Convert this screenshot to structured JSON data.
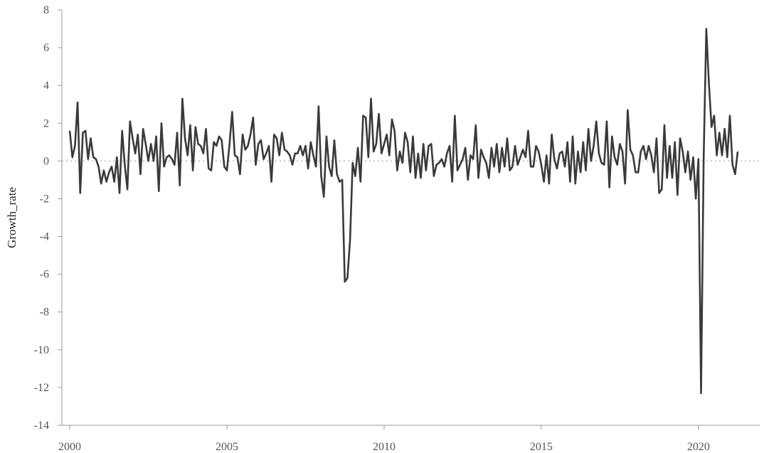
{
  "chart_data": {
    "type": "line",
    "title": "",
    "xlabel": "",
    "ylabel": "Growth_rate",
    "xlim": [
      1999.75,
      2021.95
    ],
    "ylim": [
      -14,
      8
    ],
    "x_ticks": [
      2000,
      2005,
      2010,
      2015,
      2020
    ],
    "x_tick_labels": [
      "2000",
      "2005",
      "2010",
      "2015",
      "2020"
    ],
    "y_ticks": [
      -14,
      -12,
      -10,
      -8,
      -6,
      -4,
      -2,
      0,
      2,
      4,
      6,
      8
    ],
    "y_tick_labels": [
      "-14",
      "-12",
      "-10",
      "-8",
      "-6",
      "-4",
      "-2",
      "0",
      "2",
      "4",
      "6",
      "8"
    ],
    "grid": false,
    "reference_line": 0,
    "series_color": "#3a3a3a",
    "series": [
      {
        "start_year": 2000,
        "start_month": 1,
        "frequency": "monthly",
        "values": [
          1.6,
          0.2,
          0.8,
          3.1,
          -1.7,
          1.5,
          1.6,
          0.1,
          1.2,
          0.2,
          0.1,
          -0.3,
          -1.2,
          -0.5,
          -1.1,
          -0.6,
          -0.3,
          -1.1,
          0.2,
          -1.7,
          1.6,
          -0.2,
          -1.5,
          2.1,
          1.2,
          0.4,
          1.4,
          -0.7,
          1.7,
          0.9,
          0.0,
          0.9,
          0.0,
          1.3,
          -1.6,
          2.0,
          -0.3,
          0.2,
          0.3,
          0.1,
          -0.2,
          1.5,
          -1.3,
          3.3,
          1.2,
          0.3,
          1.9,
          -0.5,
          1.8,
          0.9,
          0.8,
          0.4,
          1.7,
          -0.4,
          -0.5,
          1.0,
          0.8,
          1.3,
          1.1,
          -0.3,
          -0.5,
          0.9,
          2.6,
          0.3,
          0.2,
          -0.7,
          1.4,
          0.6,
          0.8,
          1.4,
          2.3,
          -0.2,
          0.9,
          1.1,
          0.1,
          0.4,
          0.8,
          -1.1,
          1.4,
          1.2,
          0.3,
          1.5,
          0.6,
          0.5,
          0.3,
          -0.2,
          0.4,
          0.4,
          0.8,
          0.3,
          0.8,
          -0.4,
          1.0,
          0.3,
          -0.3,
          2.9,
          -0.8,
          -1.9,
          1.3,
          -0.3,
          -0.8,
          1.1,
          -0.7,
          -1.1,
          -1.0,
          -6.4,
          -6.2,
          -4.2,
          -0.1,
          -0.8,
          0.7,
          -1.1,
          2.4,
          2.3,
          0.2,
          3.3,
          0.5,
          0.9,
          2.5,
          0.4,
          0.9,
          1.4,
          0.3,
          2.2,
          1.6,
          -0.5,
          0.5,
          -0.1,
          1.5,
          1.0,
          -0.6,
          1.3,
          -0.9,
          0.4,
          -0.9,
          0.9,
          -0.5,
          0.8,
          0.9,
          -0.8,
          -0.2,
          -0.1,
          0.1,
          -0.3,
          0.4,
          0.8,
          -1.1,
          2.4,
          -0.5,
          -0.2,
          0.1,
          0.7,
          -1.0,
          0.3,
          0.1,
          1.9,
          -0.9,
          0.6,
          0.2,
          -0.1,
          -0.9,
          0.7,
          -0.3,
          0.9,
          -0.6,
          0.7,
          -0.3,
          1.2,
          -0.5,
          -0.3,
          0.8,
          -0.2,
          0.2,
          0.6,
          0.2,
          1.6,
          -0.3,
          -0.3,
          0.8,
          0.5,
          -0.2,
          -1.1,
          0.3,
          -1.2,
          1.4,
          0.1,
          -0.4,
          0.4,
          0.5,
          -0.3,
          1.0,
          -1.1,
          1.3,
          -1.2,
          0.5,
          -0.6,
          1.0,
          -0.5,
          1.7,
          0.0,
          0.8,
          2.1,
          0.4,
          -0.1,
          -0.2,
          2.1,
          -1.4,
          1.3,
          0.2,
          -0.2,
          0.9,
          0.5,
          -1.2,
          2.7,
          0.6,
          0.3,
          -0.6,
          -0.6,
          0.5,
          0.8,
          0.1,
          0.8,
          0.3,
          -0.6,
          1.2,
          -1.7,
          -1.5,
          1.9,
          -0.9,
          0.8,
          -0.9,
          1.0,
          -1.8,
          1.2,
          0.5,
          -0.6,
          0.5,
          -1.0,
          0.2,
          -2.0,
          0.1,
          -12.3,
          0.2,
          7.0,
          4.1,
          1.8,
          2.4,
          0.3,
          1.5,
          0.3,
          1.7,
          0.2,
          2.4,
          -0.2,
          -0.7,
          0.5
        ]
      }
    ]
  }
}
